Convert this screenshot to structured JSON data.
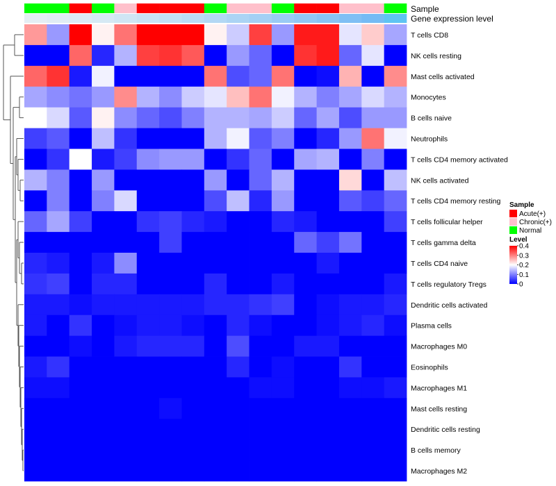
{
  "chart_data": {
    "type": "heatmap",
    "annotations": {
      "sample_label": "Sample",
      "expression_label": "Gene expression level",
      "sample_groups": [
        "Normal",
        "Normal",
        "Acute(+)",
        "Normal",
        "Chronic(+)",
        "Acute(+)",
        "Acute(+)",
        "Acute(+)",
        "Normal",
        "Chronic(+)",
        "Chronic(+)",
        "Normal",
        "Acute(+)",
        "Acute(+)",
        "Chronic(+)",
        "Chronic(+)",
        "Normal"
      ],
      "expression_levels": [
        0.05,
        0.08,
        0.12,
        0.16,
        0.2,
        0.24,
        0.28,
        0.32,
        0.36,
        0.4,
        0.45,
        0.5,
        0.55,
        0.6,
        0.66,
        0.72,
        0.8
      ],
      "expression_colors": [
        "#e4eef4",
        "#e0ecf4",
        "#dcebf4",
        "#d6e9f4",
        "#d0e6f4",
        "#c9e3f4",
        "#c2e0f4",
        "#bbdcf4",
        "#b3d8f4",
        "#abd4f4",
        "#a3d0f4",
        "#9acbf4",
        "#91c7f4",
        "#88c3f4",
        "#7fbff4",
        "#75bbf4",
        "#5ec4f2"
      ]
    },
    "rows": [
      "T cells CD8",
      "NK cells resting",
      "Mast cells activated",
      "Monocytes",
      "B cells naive",
      "Neutrophils",
      "T cells CD4 memory activated",
      "NK cells activated",
      "T cells CD4 memory resting",
      "T cells follicular helper",
      "T cells gamma delta",
      "T cells CD4 naive",
      "T cells regulatory  Tregs",
      "Dendritic cells activated",
      "Plasma cells",
      "Macrophages M0",
      "Eosinophils",
      "Macrophages M1",
      "Mast cells resting",
      "Dendritic cells resting",
      "B cells memory",
      "Macrophages M2"
    ],
    "values": [
      [
        0.28,
        0.12,
        0.4,
        0.21,
        0.31,
        0.4,
        0.4,
        0.4,
        0.21,
        0.16,
        0.35,
        0.12,
        0.38,
        0.38,
        0.18,
        0.24,
        0.13
      ],
      [
        0.0,
        0.0,
        0.32,
        0.03,
        0.14,
        0.35,
        0.36,
        0.33,
        0.0,
        0.12,
        0.08,
        0.0,
        0.36,
        0.38,
        0.08,
        0.18,
        0.0
      ],
      [
        0.32,
        0.36,
        0.02,
        0.19,
        0.0,
        0.0,
        0.0,
        0.0,
        0.31,
        0.06,
        0.08,
        0.31,
        0.0,
        0.01,
        0.26,
        0.0,
        0.29
      ],
      [
        0.13,
        0.11,
        0.09,
        0.12,
        0.29,
        0.14,
        0.11,
        0.16,
        0.18,
        0.25,
        0.31,
        0.19,
        0.14,
        0.1,
        0.13,
        0.17,
        0.14
      ],
      [
        0.2,
        0.17,
        0.07,
        0.21,
        0.11,
        0.08,
        0.06,
        0.1,
        0.14,
        0.14,
        0.13,
        0.16,
        0.08,
        0.13,
        0.06,
        0.12,
        0.12
      ],
      [
        0.05,
        0.07,
        0.0,
        0.15,
        0.04,
        0.0,
        0.0,
        0.0,
        0.14,
        0.19,
        0.07,
        0.1,
        0.0,
        0.03,
        0.12,
        0.31,
        0.19
      ],
      [
        0.0,
        0.04,
        0.2,
        0.02,
        0.05,
        0.11,
        0.12,
        0.12,
        0.0,
        0.04,
        0.08,
        0.0,
        0.13,
        0.14,
        0.0,
        0.1,
        0.0
      ],
      [
        0.14,
        0.1,
        0.0,
        0.12,
        0.0,
        0.0,
        0.0,
        0.0,
        0.12,
        0.0,
        0.08,
        0.14,
        0.0,
        0.0,
        0.23,
        0.0,
        0.15
      ],
      [
        0.0,
        0.1,
        0.0,
        0.1,
        0.17,
        0.0,
        0.0,
        0.0,
        0.06,
        0.15,
        0.03,
        0.12,
        0.0,
        0.0,
        0.07,
        0.05,
        0.08
      ],
      [
        0.08,
        0.13,
        0.05,
        0.0,
        0.0,
        0.04,
        0.05,
        0.03,
        0.02,
        0.0,
        0.0,
        0.03,
        0.02,
        0.0,
        0.0,
        0.0,
        0.05
      ],
      [
        0.0,
        0.0,
        0.0,
        0.0,
        0.0,
        0.0,
        0.05,
        0.0,
        0.0,
        0.0,
        0.0,
        0.0,
        0.08,
        0.05,
        0.09,
        0.0,
        0.0
      ],
      [
        0.03,
        0.02,
        0.0,
        0.02,
        0.11,
        0.0,
        0.0,
        0.0,
        0.0,
        0.0,
        0.0,
        0.0,
        0.0,
        0.02,
        0.0,
        0.0,
        0.0
      ],
      [
        0.04,
        0.05,
        0.0,
        0.03,
        0.03,
        0.0,
        0.0,
        0.0,
        0.03,
        0.0,
        0.0,
        0.02,
        0.0,
        0.0,
        0.0,
        0.0,
        0.02
      ],
      [
        0.02,
        0.02,
        0.01,
        0.02,
        0.02,
        0.02,
        0.02,
        0.02,
        0.03,
        0.03,
        0.04,
        0.05,
        0.0,
        0.01,
        0.02,
        0.02,
        0.03
      ],
      [
        0.02,
        0.0,
        0.04,
        0.0,
        0.01,
        0.02,
        0.02,
        0.01,
        0.0,
        0.03,
        0.01,
        0.0,
        0.0,
        0.01,
        0.02,
        0.03,
        0.01
      ],
      [
        0.0,
        0.0,
        0.01,
        0.0,
        0.02,
        0.03,
        0.03,
        0.03,
        0.0,
        0.06,
        0.0,
        0.0,
        0.02,
        0.02,
        0.0,
        0.0,
        0.0
      ],
      [
        0.02,
        0.04,
        0.0,
        0.0,
        0.0,
        0.0,
        0.0,
        0.0,
        0.0,
        0.03,
        0.0,
        0.01,
        0.0,
        0.0,
        0.04,
        0.0,
        0.0
      ],
      [
        0.01,
        0.01,
        0.0,
        0.0,
        0.0,
        0.0,
        0.0,
        0.0,
        0.0,
        0.0,
        0.01,
        0.01,
        0.0,
        0.0,
        0.01,
        0.01,
        0.02
      ],
      [
        0.0,
        0.0,
        0.0,
        0.0,
        0.0,
        0.0,
        0.01,
        0.0,
        0.0,
        0.0,
        0.0,
        0.0,
        0.0,
        0.0,
        0.0,
        0.0,
        0.0
      ],
      [
        0.0,
        0.0,
        0.0,
        0.0,
        0.0,
        0.0,
        0.0,
        0.0,
        0.0,
        0.0,
        0.0,
        0.0,
        0.0,
        0.0,
        0.0,
        0.0,
        0.0
      ],
      [
        0.0,
        0.0,
        0.0,
        0.0,
        0.0,
        0.0,
        0.0,
        0.0,
        0.0,
        0.0,
        0.0,
        0.0,
        0.0,
        0.0,
        0.0,
        0.0,
        0.0
      ],
      [
        0.0,
        0.0,
        0.0,
        0.0,
        0.0,
        0.0,
        0.0,
        0.0,
        0.0,
        0.0,
        0.0,
        0.0,
        0.0,
        0.0,
        0.0,
        0.0,
        0.0
      ]
    ],
    "color_scale": {
      "min": 0,
      "max": 0.4,
      "stops": [
        {
          "value": 0,
          "color": "#0000ff"
        },
        {
          "value": 0.2,
          "color": "#ffffff"
        },
        {
          "value": 0.4,
          "color": "#ff0000"
        }
      ]
    },
    "legends": {
      "sample": {
        "title": "Sample",
        "entries": [
          {
            "label": "Acute(+)",
            "color": "#ff0000"
          },
          {
            "label": "Chronic(+)",
            "color": "#ffc0cb"
          },
          {
            "label": "Normal",
            "color": "#00ff00"
          }
        ]
      },
      "level": {
        "title": "Level",
        "ticks": [
          {
            "value": 0.4,
            "label": "0.4"
          },
          {
            "value": 0.3,
            "label": "0.3"
          },
          {
            "value": 0.2,
            "label": "0.2"
          },
          {
            "value": 0.1,
            "label": "0.1"
          },
          {
            "value": 0,
            "label": "0"
          }
        ]
      }
    },
    "row_dendrogram": true
  }
}
